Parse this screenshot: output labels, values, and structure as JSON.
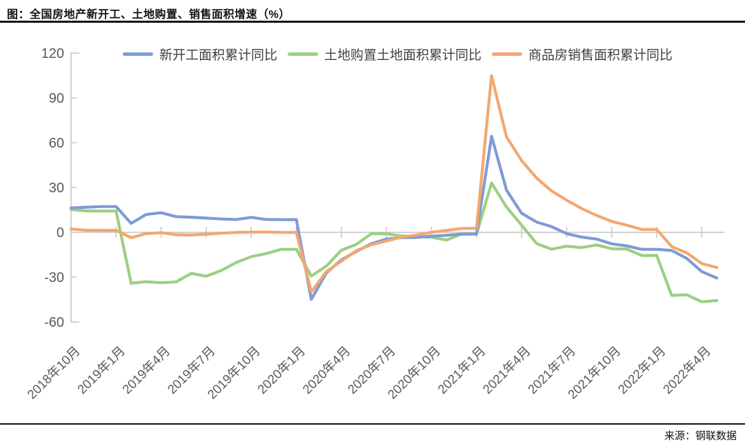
{
  "chart_data": {
    "type": "line",
    "title": "图：全国房地产新开工、土地购置、销售面积增速（%）",
    "source": "来源：钢联数据",
    "ylabel": "",
    "xlabel": "",
    "ylim": [
      -60,
      120
    ],
    "yticks": [
      120,
      90,
      60,
      30,
      0,
      -30,
      -60
    ],
    "grid": "zero-line-only",
    "legend_position": "top",
    "axis_color": "#c4c4c4",
    "tick_label_color": "#595959",
    "x_tick_labels": [
      "2018年10月",
      "2019年1月",
      "2019年4月",
      "2019年7月",
      "2019年10月",
      "2020年1月",
      "2020年4月",
      "2020年7月",
      "2020年10月",
      "2021年1月",
      "2021年4月",
      "2021年7月",
      "2021年10月",
      "2022年1月",
      "2022年4月"
    ],
    "x_tick_step": 3,
    "categories": [
      "2018年10月",
      "2018年11月",
      "2018年12月",
      "2019年1月",
      "2019年2月",
      "2019年3月",
      "2019年4月",
      "2019年5月",
      "2019年6月",
      "2019年7月",
      "2019年8月",
      "2019年9月",
      "2019年10月",
      "2019年11月",
      "2019年12月",
      "2020年1月",
      "2020年2月",
      "2020年3月",
      "2020年4月",
      "2020年5月",
      "2020年6月",
      "2020年7月",
      "2020年8月",
      "2020年9月",
      "2020年10月",
      "2020年11月",
      "2020年12月",
      "2021年1月",
      "2021年2月",
      "2021年3月",
      "2021年4月",
      "2021年5月",
      "2021年6月",
      "2021年7月",
      "2021年8月",
      "2021年9月",
      "2021年10月",
      "2021年11月",
      "2021年12月",
      "2022年1月",
      "2022年2月",
      "2022年3月",
      "2022年4月",
      "2022年5月"
    ],
    "series": [
      {
        "name": "新开工面积累计同比",
        "color": "#7e9bd4",
        "values": [
          16.3,
          16.8,
          17.2,
          17.2,
          6.0,
          11.9,
          13.1,
          10.5,
          10.1,
          9.5,
          8.9,
          8.6,
          10.0,
          8.6,
          8.5,
          8.5,
          -44.9,
          -27.2,
          -18.4,
          -12.8,
          -7.6,
          -4.5,
          -3.6,
          -3.4,
          -2.6,
          -2.0,
          -1.2,
          -1.2,
          64.3,
          28.2,
          12.8,
          6.9,
          3.8,
          -0.9,
          -3.2,
          -4.5,
          -7.7,
          -9.1,
          -11.4,
          -11.4,
          -12.2,
          -17.5,
          -26.3,
          -30.6
        ]
      },
      {
        "name": "土地购置土地面积累计同比",
        "color": "#9ccf82",
        "values": [
          15.3,
          14.3,
          14.2,
          14.2,
          -34.1,
          -33.1,
          -33.8,
          -33.2,
          -27.5,
          -29.4,
          -25.6,
          -20.2,
          -16.3,
          -14.2,
          -11.4,
          -11.4,
          -29.3,
          -22.6,
          -12.0,
          -8.1,
          -0.9,
          -1.0,
          -2.4,
          -2.9,
          -3.3,
          -5.2,
          -1.1,
          -1.1,
          33.0,
          16.9,
          4.8,
          -7.5,
          -11.3,
          -9.3,
          -10.2,
          -8.5,
          -11.0,
          -11.2,
          -15.5,
          -15.5,
          -42.3,
          -41.8,
          -46.5,
          -45.7
        ]
      },
      {
        "name": "商品房销售面积累计同比",
        "color": "#f4a770",
        "values": [
          2.2,
          1.4,
          1.3,
          1.3,
          -3.6,
          -0.9,
          -0.3,
          -1.6,
          -1.8,
          -1.3,
          -0.6,
          -0.1,
          0.1,
          0.2,
          -0.1,
          -0.1,
          -39.9,
          -26.3,
          -19.3,
          -12.3,
          -8.4,
          -5.8,
          -3.3,
          -1.8,
          0.0,
          1.3,
          2.6,
          2.6,
          104.9,
          63.8,
          48.1,
          36.3,
          27.7,
          21.5,
          15.9,
          11.3,
          7.3,
          4.8,
          1.9,
          1.9,
          -9.6,
          -13.8,
          -20.9,
          -23.6
        ]
      }
    ]
  }
}
